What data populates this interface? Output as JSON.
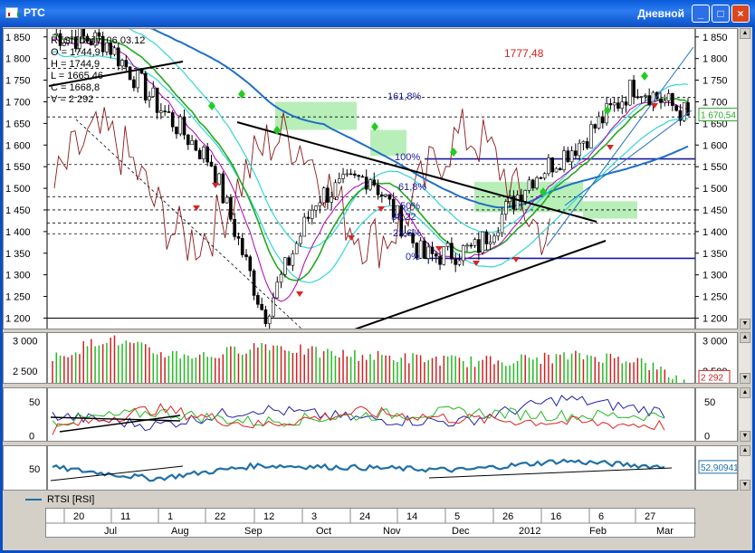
{
  "window": {
    "title": "РТС",
    "period": "Дневной"
  },
  "info": {
    "symbol": "RTSI [Daily] 06.03.12",
    "open": "O = 1744,9",
    "high": "H = 1744,9",
    "low": "L = 1665,46",
    "close": "C = 1668,8",
    "volume": "V = 2 292"
  },
  "annotations": {
    "peak": "1777,48",
    "fib_1618": "161,8%",
    "fib_100": "100%",
    "fib_618": "61,8%",
    "fib_50": "50%",
    "fib_382": "38,22",
    "fib_236": "23,6%",
    "fib_0": "0%"
  },
  "price_axis": {
    "ticks": [
      "1 850",
      "1 800",
      "1 750",
      "1 700",
      "1 650",
      "1 600",
      "1 550",
      "1 500",
      "1 450",
      "1 400",
      "1 350",
      "1 300",
      "1 250",
      "1 200"
    ],
    "current_value": "1 670,54"
  },
  "volume_axis": {
    "ticks": [
      "3 000",
      "2 500"
    ],
    "current_value": "2 292"
  },
  "osc_axis": {
    "ticks": [
      "50",
      "0"
    ]
  },
  "rsi_axis": {
    "ticks": [
      "50"
    ],
    "current_value": "52,90941"
  },
  "legend": {
    "rsi_label": "RTSI [RSI]"
  },
  "date_axis": {
    "days": [
      "20",
      "11",
      "1",
      "22",
      "12",
      "3",
      "24",
      "14",
      "5",
      "26",
      "16",
      "6",
      "27"
    ],
    "months": [
      "Jul",
      "Aug",
      "Sep",
      "Oct",
      "Nov",
      "Dec",
      "2012",
      "Feb",
      "Mar"
    ]
  },
  "colors": {
    "up": "#22bb22",
    "down": "#cc2222",
    "ma_blue": "#1f6fc8",
    "trendline": "#000000",
    "rsi": "#1f6fa8",
    "cyan": "#33d6d6",
    "cloud": "#7ee07e"
  },
  "chart_data": [
    {
      "type": "line",
      "title": "RTSI [Daily] 06.03.12",
      "ylabel": "",
      "ylim": [
        1180,
        1860
      ],
      "x": [
        "2011-07-20",
        "2011-08-01",
        "2011-08-22",
        "2011-09-12",
        "2011-10-03",
        "2011-10-24",
        "2011-11-14",
        "2011-12-05",
        "2011-12-26",
        "2012-01-16",
        "2012-02-06",
        "2012-02-27",
        "2012-03-06"
      ],
      "series": [
        {
          "name": "RTSI close",
          "values": [
            1855,
            1840,
            1690,
            1560,
            1205,
            1480,
            1530,
            1340,
            1360,
            1520,
            1610,
            1740,
            1668.8
          ]
        }
      ],
      "annotations": [
        "1777,48",
        "161,8%",
        "100%",
        "61,8%",
        "50%",
        "38,22",
        "23,6%",
        "0%"
      ]
    },
    {
      "type": "bar",
      "title": "",
      "ylim": [
        2300,
        3100
      ],
      "x": [
        "2011-07-20",
        "2011-08-01",
        "2011-08-22",
        "2011-09-12",
        "2011-10-03",
        "2011-10-24",
        "2011-11-14",
        "2011-12-05",
        "2011-12-26",
        "2012-01-16",
        "2012-02-06",
        "2012-02-27",
        "2012-03-06"
      ],
      "series": [
        {
          "name": "",
          "values": [
            2700,
            3050,
            2800,
            2750,
            2950,
            2800,
            2750,
            2700,
            2650,
            2700,
            2750,
            2700,
            2292
          ]
        }
      ]
    },
    {
      "type": "line",
      "title": "",
      "ylim": [
        -5,
        65
      ],
      "x": [
        "2011-07-20",
        "2011-08-22",
        "2011-10-03",
        "2011-11-14",
        "2011-12-26",
        "2012-02-06",
        "2012-03-06"
      ],
      "series": [
        {
          "name": "",
          "values": [
            30,
            15,
            40,
            25,
            20,
            55,
            35
          ]
        },
        {
          "name": "",
          "values": [
            20,
            35,
            20,
            30,
            35,
            30,
            30
          ]
        },
        {
          "name": "",
          "values": [
            10,
            40,
            15,
            35,
            25,
            20,
            15
          ]
        }
      ]
    },
    {
      "type": "line",
      "title": "",
      "ylim": [
        20,
        80
      ],
      "x": [
        "2011-07-20",
        "2011-08-22",
        "2011-10-03",
        "2011-11-14",
        "2011-12-26",
        "2012-02-06",
        "2012-03-06"
      ],
      "series": [
        {
          "name": "RTSI [RSI]",
          "values": [
            52,
            35,
            55,
            52,
            48,
            62,
            52.90941
          ]
        }
      ]
    }
  ]
}
